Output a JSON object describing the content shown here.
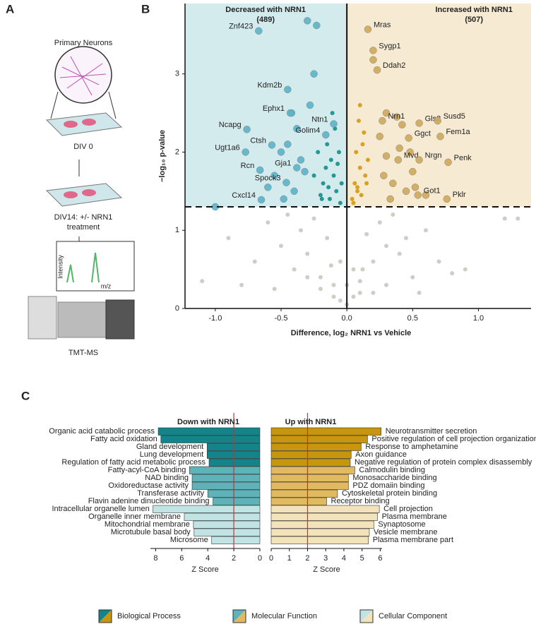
{
  "panel_labels": [
    "A",
    "B",
    "C"
  ],
  "workflow": {
    "steps": [
      "Primary Neurons",
      "DIV 0",
      "DIV14: +/- NRN1",
      "treatment",
      "TMT-MS"
    ],
    "spectrum_axes": [
      "Intensity",
      "m/z"
    ]
  },
  "legend_labels": [
    "Biological Process",
    "Molecular Function",
    "Cellular Component"
  ],
  "chart_data": [
    {
      "type": "scatter",
      "xlabel": "Difference, log₂ NRN1 vs Vehicle",
      "ylabel": "−log₁₀ p-value",
      "annotations": [
        "Decreased with NRN1",
        "(489)",
        "Increased with NRN1",
        "(507)"
      ],
      "region_colors": [
        "#d4ebee",
        "#f6ead3"
      ],
      "xlim": [
        -1.23,
        1.4
      ],
      "ylim": [
        0,
        3.9
      ],
      "xticks": [
        {
          "value": -1,
          "label": "-1.0"
        },
        {
          "value": -0.5,
          "label": "-0.5"
        },
        {
          "value": 0,
          "label": "0.0"
        },
        {
          "value": 0.5,
          "label": "0.5"
        },
        {
          "value": 1,
          "label": "1.0"
        }
      ],
      "yticks": [
        0,
        1,
        2,
        3
      ],
      "hline": 1.3,
      "vline": 0,
      "series": [
        {
          "color": "#c9c8c0",
          "marker_size": "small",
          "x": [
            -0.9,
            -0.7,
            -0.6,
            -0.5,
            -0.45,
            -0.4,
            -0.35,
            -0.3,
            -0.25,
            -0.2,
            -0.15,
            -0.1,
            -0.05,
            0,
            0.05,
            0.1,
            0.15,
            0.2,
            0.25,
            0.3,
            0.35,
            0.4,
            0.45,
            0.5,
            0.6,
            0.7,
            0.9,
            1.2,
            -1.1,
            -0.8,
            -0.55,
            -0.3,
            -0.1,
            0.1,
            0.3,
            0.55,
            0.8,
            1.3,
            -0.2,
            0.2,
            -0.05,
            0.05,
            0,
            -0.12,
            0.12
          ],
          "values": [
            0.9,
            0.6,
            1.1,
            0.8,
            1.2,
            0.5,
            1.0,
            0.7,
            1.15,
            0.4,
            0.9,
            0.3,
            0.6,
            0.05,
            0.5,
            0.35,
            0.95,
            0.6,
            1.1,
            0.8,
            1.2,
            0.7,
            0.9,
            0.4,
            1.0,
            0.6,
            0.5,
            1.15,
            0.35,
            0.3,
            0.25,
            0.4,
            0.15,
            0.2,
            0.3,
            0.2,
            0.45,
            1.15,
            0.25,
            0.2,
            0.1,
            0.15,
            0.3,
            0.55,
            0.5
          ]
        },
        {
          "color": "#0f8f8a",
          "marker_size": "small",
          "x": [
            -0.05,
            -0.08,
            -0.1,
            -0.12,
            -0.15,
            -0.18,
            -0.2,
            -0.06,
            -0.09,
            -0.13,
            -0.16,
            -0.22,
            -0.25,
            -0.04,
            -0.11,
            -0.14,
            -0.07,
            -0.19
          ],
          "values": [
            1.35,
            1.5,
            1.7,
            1.9,
            2.1,
            1.6,
            1.45,
            2.0,
            2.3,
            1.4,
            1.8,
            2.0,
            1.7,
            1.6,
            2.5,
            1.55,
            1.85,
            1.4
          ]
        },
        {
          "color": "#d49a10",
          "marker_size": "small",
          "x": [
            0.05,
            0.08,
            0.1,
            0.12,
            0.15,
            0.07,
            0.09,
            0.11,
            0.14,
            0.06,
            0.13,
            0.04,
            0.16,
            0.1,
            0.08
          ],
          "values": [
            1.35,
            1.5,
            1.8,
            2.1,
            1.6,
            2.0,
            2.4,
            1.45,
            1.7,
            1.6,
            2.25,
            1.4,
            1.9,
            2.6,
            1.55
          ]
        },
        {
          "color": "#5ab4c8",
          "marker_size": "large",
          "x": [
            -0.3,
            -0.23,
            -0.45,
            -0.35,
            -0.55,
            -0.28,
            -0.4,
            -0.6,
            -1.0,
            -0.5,
            -0.32,
            -0.38,
            -0.25,
            -0.48,
            -0.42
          ],
          "values": [
            3.68,
            3.62,
            2.1,
            1.9,
            1.7,
            2.6,
            1.5,
            1.55,
            1.3,
            2.0,
            1.75,
            2.3,
            3.0,
            1.4,
            2.5
          ]
        },
        {
          "color": "#cfa85a",
          "marker_size": "large",
          "x": [
            0.2,
            0.3,
            0.35,
            0.4,
            0.45,
            0.3,
            0.25,
            0.5,
            0.6,
            0.42,
            0.33,
            0.28,
            0.38,
            0.48,
            0.52
          ],
          "values": [
            3.18,
            2.5,
            1.6,
            2.05,
            1.5,
            1.95,
            2.2,
            1.75,
            1.45,
            2.35,
            1.4,
            1.7,
            2.45,
            2.0,
            1.55
          ]
        },
        {
          "color": "#5ab4c8",
          "marker_size": "large",
          "label_side": "left",
          "labels": [
            "Znf423",
            "Kdm2b",
            "Ephx1",
            "Ntn1",
            "Golim4",
            "Ncapg",
            "Ctsh",
            "Ugt1a6",
            "Gja1",
            "Rcn",
            "Spock3",
            "Cxcl14"
          ],
          "x": [
            -0.67,
            -0.45,
            -0.43,
            -0.1,
            -0.16,
            -0.76,
            -0.57,
            -0.77,
            -0.38,
            -0.66,
            -0.46,
            -0.65
          ],
          "values": [
            3.55,
            2.8,
            2.5,
            2.36,
            2.22,
            2.29,
            2.09,
            2.0,
            1.8,
            1.77,
            1.61,
            1.39
          ]
        },
        {
          "color": "#cfa85a",
          "marker_size": "large",
          "label_side": "right",
          "labels": [
            "Mras",
            "Sygp1",
            "Ddah2",
            "Nrn1",
            "Gls2",
            "Susd5",
            "Ggct",
            "Fem1a",
            "Mvd",
            "Nrgn",
            "Penk",
            "Got1",
            "Pklr"
          ],
          "x": [
            0.16,
            0.2,
            0.23,
            0.27,
            0.55,
            0.69,
            0.47,
            0.71,
            0.39,
            0.55,
            0.77,
            0.54,
            0.76
          ],
          "values": [
            3.57,
            3.3,
            3.05,
            2.4,
            2.37,
            2.4,
            2.18,
            2.2,
            1.9,
            1.9,
            1.87,
            1.45,
            1.4
          ]
        }
      ]
    },
    {
      "type": "bar",
      "title": "Down with NRN1",
      "xlabel": "Z Score",
      "label_side": "left",
      "categories": [
        "Organic acid catabolic process",
        "Fatty acid oxidation",
        "Gland development",
        "Lung development",
        "Regulation of fatty acid metabolic process",
        "Fatty-acyl-CoA binding",
        "NAD binding",
        "Oxidoreductase activity",
        "Transferase activity",
        "Flavin adenine dinucleotide binding",
        "Intracellular organelle lumen",
        "Organelle inner membrane",
        "Mitochondrial membrane",
        "Microtubule basal body",
        "Microsome"
      ],
      "values": [
        7.8,
        7.6,
        4.05,
        4.05,
        3.9,
        5.4,
        5.2,
        5.2,
        4.0,
        3.6,
        8.2,
        5.8,
        5.1,
        5.05,
        3.7
      ],
      "groups": [
        0,
        0,
        0,
        0,
        0,
        1,
        1,
        1,
        1,
        1,
        2,
        2,
        2,
        2,
        2
      ],
      "group_colors": [
        "#13858a",
        "#5fb2b8",
        "#c2e3e4"
      ],
      "xlim": [
        8.4,
        0
      ],
      "xticks": [
        8,
        6,
        4,
        2,
        0
      ],
      "threshold": 2,
      "threshold_color": "#e0282a"
    },
    {
      "type": "bar",
      "title": "Up with NRN1",
      "xlabel": "Z Score",
      "label_side": "right",
      "categories": [
        "Neurotransmitter secretion",
        "Positive regulation of cell projection organization",
        "Response to amphetamine",
        "Axon guidance",
        "Negative regulation of protein complex disassembly",
        "Calmodulin binding",
        "Monosaccharide binding",
        "PDZ domaiin binding",
        "Cytoskeletal protein binding",
        "Receptor binding",
        "Cell projection",
        "Plasma membrane",
        "Synaptosome",
        "Vesicle membrane",
        "Plasma membrane part"
      ],
      "values": [
        6.05,
        5.3,
        4.95,
        4.4,
        4.35,
        4.6,
        4.25,
        4.25,
        3.65,
        3.05,
        5.95,
        5.85,
        5.65,
        5.4,
        5.35
      ],
      "groups": [
        0,
        0,
        0,
        0,
        0,
        1,
        1,
        1,
        1,
        1,
        2,
        2,
        2,
        2,
        2
      ],
      "group_colors": [
        "#c8950e",
        "#e1b95e",
        "#f3e3ba"
      ],
      "xlim": [
        0,
        6.1
      ],
      "xticks": [
        0,
        1,
        2,
        3,
        4,
        5,
        6
      ],
      "threshold": 2,
      "threshold_color": "#e0282a"
    }
  ]
}
